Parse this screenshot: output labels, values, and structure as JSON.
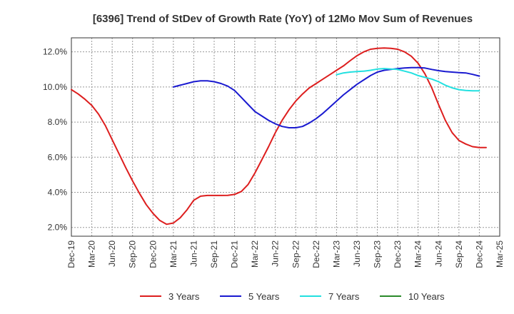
{
  "chart_data": {
    "type": "line",
    "title": "[6396]  Trend of StDev of Growth Rate (YoY) of 12Mo Mov Sum of Revenues",
    "xlabel": "",
    "ylabel": "",
    "x_ticks": [
      "Dec-19",
      "Mar-20",
      "Jun-20",
      "Sep-20",
      "Dec-20",
      "Mar-21",
      "Jun-21",
      "Sep-21",
      "Dec-21",
      "Mar-22",
      "Jun-22",
      "Sep-22",
      "Dec-22",
      "Mar-23",
      "Jun-23",
      "Sep-23",
      "Dec-23",
      "Mar-24",
      "Jun-24",
      "Sep-24",
      "Dec-24",
      "Mar-25"
    ],
    "y_ticks": [
      2.0,
      4.0,
      6.0,
      8.0,
      10.0,
      12.0
    ],
    "y_tick_labels": [
      "2.0%",
      "4.0%",
      "6.0%",
      "8.0%",
      "10.0%",
      "12.0%"
    ],
    "ylim": [
      1.5,
      12.8
    ],
    "x_range_months": [
      0,
      63
    ],
    "grid": true,
    "legend_position": "bottom",
    "series": [
      {
        "name": "3 Years",
        "color": "#dd1e1e",
        "x": [
          0,
          1,
          2,
          3,
          4,
          5,
          6,
          7,
          8,
          9,
          10,
          11,
          12,
          13,
          14,
          15,
          16,
          17,
          18,
          19,
          20,
          21,
          22,
          23,
          24,
          25,
          26,
          27,
          28,
          29,
          30,
          31,
          32,
          33,
          34,
          35,
          36,
          37,
          38,
          39,
          40,
          41,
          42,
          43,
          44,
          45,
          46,
          47,
          48,
          49,
          50,
          51,
          52,
          53,
          54,
          55,
          56,
          57,
          58,
          59,
          60,
          61,
          62,
          63
        ],
        "values": [
          9.85,
          9.6,
          9.3,
          8.95,
          8.45,
          7.8,
          7.0,
          6.2,
          5.4,
          4.65,
          3.95,
          3.3,
          2.8,
          2.4,
          2.18,
          2.25,
          2.55,
          3.0,
          3.55,
          3.78,
          3.82,
          3.82,
          3.82,
          3.83,
          3.88,
          4.05,
          4.45,
          5.1,
          5.85,
          6.6,
          7.4,
          8.1,
          8.7,
          9.2,
          9.6,
          9.95,
          10.2,
          10.45,
          10.7,
          10.95,
          11.2,
          11.5,
          11.78,
          12.0,
          12.15,
          12.2,
          12.22,
          12.2,
          12.15,
          12.0,
          11.75,
          11.35,
          10.75,
          9.95,
          9.0,
          8.1,
          7.4,
          6.95,
          6.75,
          6.6,
          6.55,
          6.55,
          null,
          null
        ]
      },
      {
        "name": "5 Years",
        "color": "#1a1ad0",
        "x": [
          15,
          16,
          17,
          18,
          19,
          20,
          21,
          22,
          23,
          24,
          25,
          26,
          27,
          28,
          29,
          30,
          31,
          32,
          33,
          34,
          35,
          36,
          37,
          38,
          39,
          40,
          41,
          42,
          43,
          44,
          45,
          46,
          47,
          48,
          49,
          50,
          51,
          52,
          53,
          54,
          55,
          56,
          57,
          58,
          59,
          60,
          61,
          62,
          63
        ],
        "values": [
          10.0,
          10.1,
          10.2,
          10.3,
          10.35,
          10.35,
          10.3,
          10.2,
          10.05,
          9.8,
          9.4,
          9.0,
          8.6,
          8.35,
          8.1,
          7.9,
          7.75,
          7.68,
          7.68,
          7.75,
          7.95,
          8.2,
          8.5,
          8.85,
          9.2,
          9.55,
          9.85,
          10.15,
          10.4,
          10.65,
          10.85,
          10.95,
          11.0,
          11.05,
          11.08,
          11.1,
          11.1,
          11.08,
          11.0,
          10.93,
          10.88,
          10.85,
          10.82,
          10.8,
          10.72,
          10.62,
          null,
          null,
          null
        ]
      },
      {
        "name": "7 Years",
        "color": "#22e0e0",
        "x": [
          39,
          40,
          41,
          42,
          43,
          44,
          45,
          46,
          47,
          48,
          49,
          50,
          51,
          52,
          53,
          54,
          55,
          56,
          57,
          58,
          59,
          60,
          61,
          62,
          63
        ],
        "values": [
          10.7,
          10.8,
          10.85,
          10.88,
          10.9,
          10.95,
          11.02,
          11.05,
          11.02,
          11.0,
          10.9,
          10.8,
          10.65,
          10.55,
          10.45,
          10.3,
          10.1,
          9.95,
          9.85,
          9.8,
          9.78,
          9.78,
          null,
          null,
          null
        ]
      },
      {
        "name": "10 Years",
        "color": "#2a8a2a",
        "x": [],
        "values": []
      }
    ]
  }
}
